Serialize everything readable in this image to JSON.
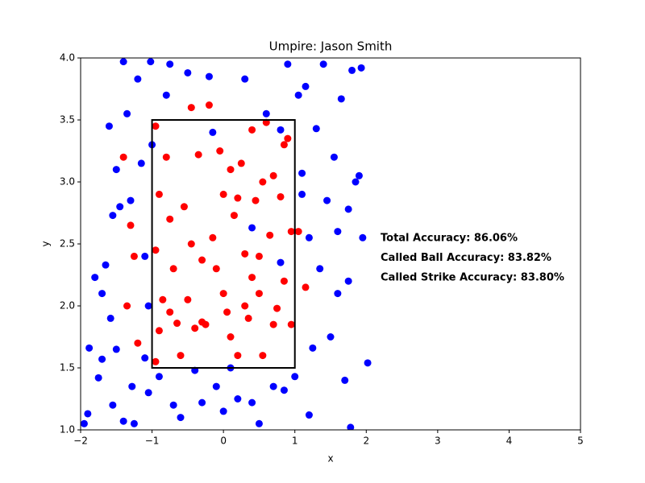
{
  "chart_data": {
    "type": "scatter",
    "title": "Umpire: Jason Smith",
    "x_label": "x",
    "y_label": "y",
    "xlim": [
      -2,
      5
    ],
    "ylim": [
      1.0,
      4.0
    ],
    "xticks": [
      {
        "value": -2,
        "label": "−2"
      },
      {
        "value": -1,
        "label": "−1"
      },
      0,
      1,
      2,
      3,
      4,
      5
    ],
    "yticks": [
      {
        "value": 1.0,
        "label": "1.0"
      },
      1.5,
      {
        "value": 2.0,
        "label": "2.0"
      },
      2.5,
      {
        "value": 3.0,
        "label": "3.0"
      },
      3.5,
      {
        "value": 4.0,
        "label": "4.0"
      }
    ],
    "zone": {
      "x": [
        -1,
        1
      ],
      "y": [
        1.5,
        3.5
      ]
    },
    "annotations": [
      "Total Accuracy: 86.06%",
      "Called Ball Accuracy: 83.82%",
      "Called Strike Accuracy: 83.80%"
    ],
    "series": [
      {
        "color": "#0000ff",
        "x": [
          -1.95,
          -1.9,
          -1.88,
          -1.8,
          -1.75,
          -1.7,
          -1.7,
          -1.65,
          -1.6,
          -1.58,
          -1.55,
          -1.55,
          -1.5,
          -1.5,
          -1.45,
          -1.4,
          -1.4,
          -1.35,
          -1.3,
          -1.28,
          -1.25,
          -1.2,
          -1.15,
          -1.1,
          -1.05,
          -1.05,
          -1.0,
          -1.02,
          -0.9,
          -0.8,
          -0.75,
          -0.7,
          -0.6,
          -0.5,
          -0.4,
          -0.3,
          -0.2,
          -0.1,
          0.0,
          0.1,
          0.2,
          0.3,
          0.4,
          0.5,
          0.6,
          0.7,
          0.8,
          0.85,
          0.9,
          1.0,
          1.05,
          1.1,
          1.15,
          1.2,
          1.25,
          1.3,
          1.35,
          1.4,
          1.45,
          1.5,
          1.55,
          1.6,
          1.65,
          1.7,
          1.75,
          1.78,
          1.8,
          1.85,
          1.9,
          1.95,
          2.02,
          1.93,
          1.75,
          1.6,
          1.2,
          1.1,
          0.4,
          -0.15,
          -1.1,
          0.8
        ],
        "y": [
          1.05,
          1.13,
          1.66,
          2.23,
          1.42,
          2.1,
          1.57,
          2.33,
          3.45,
          1.9,
          1.2,
          2.73,
          3.1,
          1.65,
          2.8,
          3.97,
          1.07,
          3.55,
          2.85,
          1.35,
          1.05,
          3.83,
          3.15,
          1.58,
          2.0,
          1.3,
          3.3,
          3.97,
          1.43,
          3.7,
          3.95,
          1.2,
          1.1,
          3.88,
          1.48,
          1.22,
          3.85,
          1.35,
          1.15,
          1.5,
          1.25,
          3.83,
          1.22,
          1.05,
          3.55,
          1.35,
          3.42,
          1.32,
          3.95,
          1.43,
          3.7,
          3.07,
          3.77,
          1.12,
          1.66,
          3.43,
          2.3,
          3.95,
          2.85,
          1.75,
          3.2,
          2.1,
          3.67,
          1.4,
          2.78,
          1.02,
          3.9,
          3.0,
          3.05,
          2.55,
          1.54,
          3.92,
          2.2,
          2.6,
          2.55,
          2.9,
          2.63,
          3.4,
          2.4,
          2.35
        ]
      },
      {
        "color": "#ff0000",
        "x": [
          -0.95,
          -0.9,
          -0.95,
          -0.9,
          -0.95,
          -0.8,
          -0.75,
          -0.7,
          -0.75,
          -0.6,
          -0.5,
          -0.45,
          -0.4,
          -0.35,
          -0.3,
          -0.25,
          -0.2,
          -0.1,
          -0.05,
          0.0,
          0.05,
          0.1,
          0.15,
          0.2,
          0.25,
          0.3,
          0.35,
          0.4,
          0.45,
          0.5,
          0.55,
          0.6,
          0.65,
          0.7,
          0.75,
          0.8,
          0.85,
          0.9,
          0.95,
          0.95,
          1.15,
          1.05,
          -1.3,
          -1.35,
          -1.2,
          -1.4,
          -1.25,
          -0.55,
          0.3,
          -0.15,
          0.55,
          -0.85,
          0.1,
          0.7,
          -0.65,
          0.2,
          -0.45,
          0.85,
          0.4,
          -0.3,
          0.0,
          0.5
        ],
        "y": [
          3.45,
          2.9,
          2.45,
          1.8,
          1.55,
          3.2,
          2.7,
          2.3,
          1.95,
          1.6,
          2.05,
          3.6,
          1.82,
          3.22,
          2.37,
          1.85,
          3.62,
          2.3,
          3.25,
          2.9,
          1.95,
          3.1,
          2.73,
          1.6,
          3.15,
          2.42,
          1.9,
          3.42,
          2.85,
          2.1,
          1.6,
          3.48,
          2.57,
          3.05,
          1.98,
          2.88,
          2.2,
          3.35,
          2.6,
          1.85,
          2.15,
          2.6,
          2.65,
          2.0,
          1.7,
          3.2,
          2.4,
          2.8,
          2.0,
          2.55,
          3.0,
          2.05,
          1.75,
          1.85,
          1.86,
          2.87,
          2.5,
          3.3,
          2.23,
          1.87,
          2.1,
          2.4
        ]
      }
    ]
  }
}
